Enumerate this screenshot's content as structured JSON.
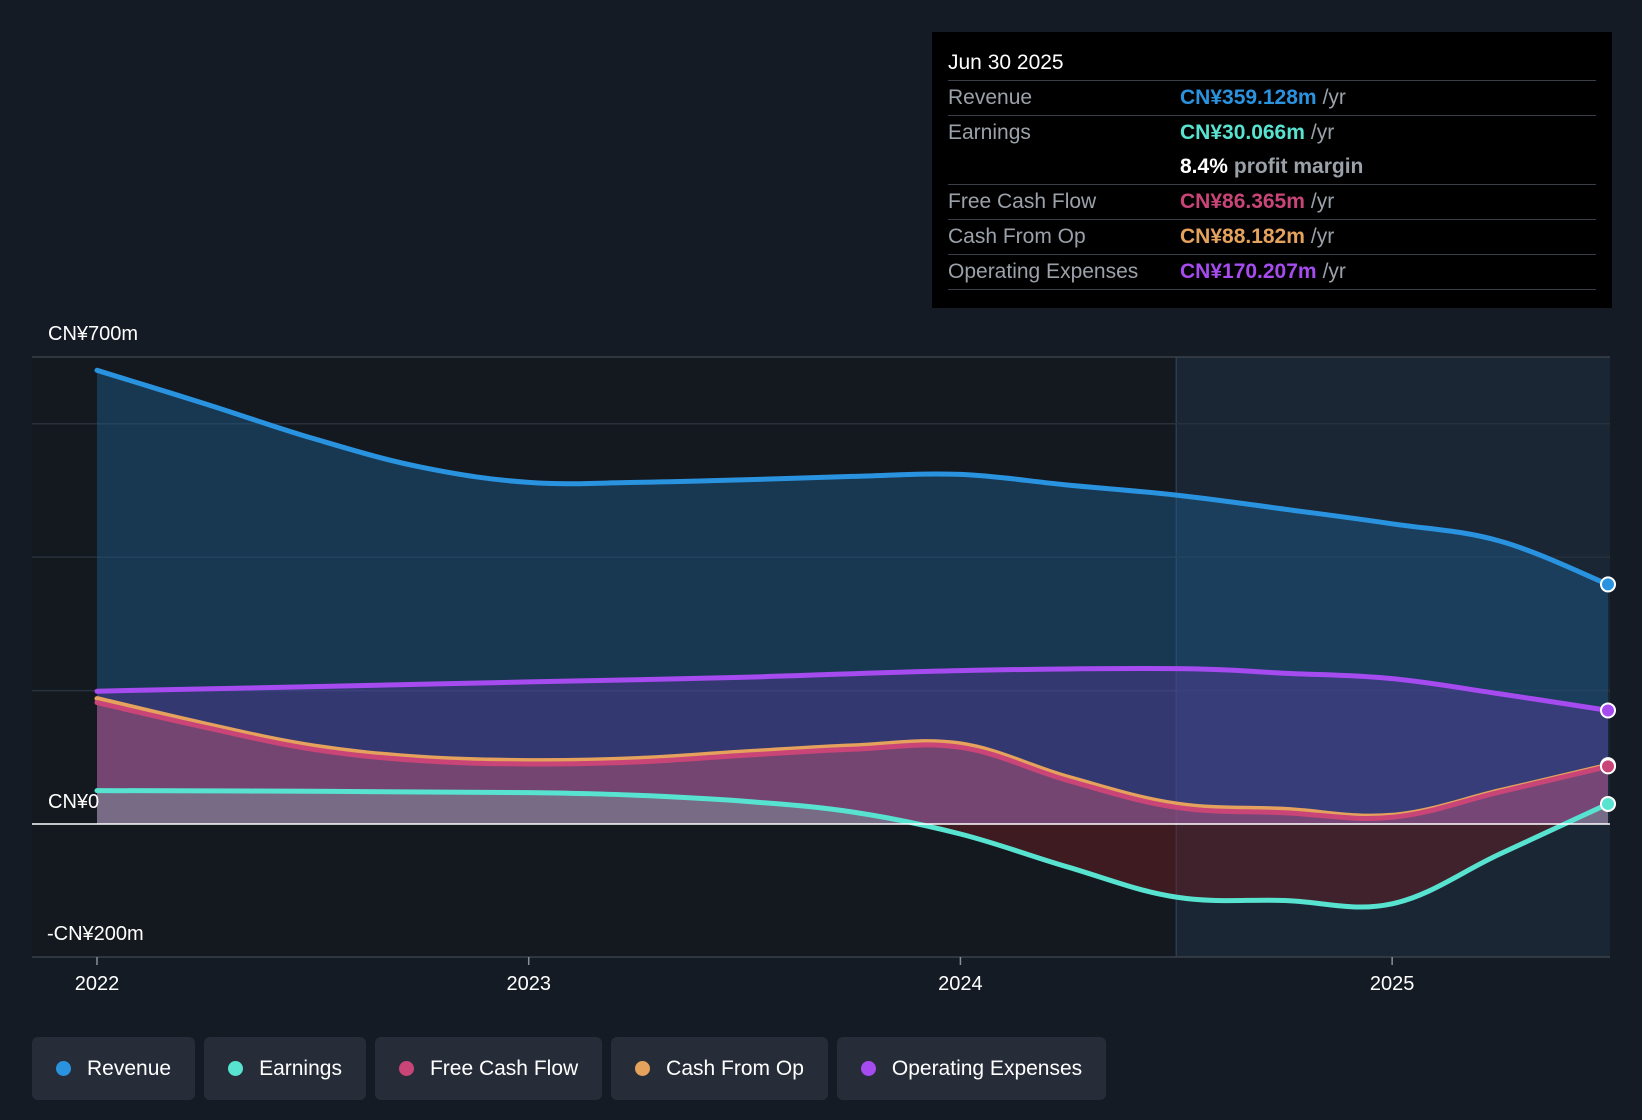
{
  "chart_data": {
    "type": "area",
    "currency_unit": "CN¥m",
    "y_axis": {
      "top_label": "CN¥700m",
      "zero_label": "CN¥0",
      "bottom_label": "-CN¥200m",
      "ylim": [
        -200,
        700
      ]
    },
    "x_axis": {
      "ticks": [
        2022,
        2023,
        2024,
        2025
      ],
      "tick_labels": [
        "2022",
        "2023",
        "2024",
        "2025"
      ],
      "xlim": [
        2022,
        2025.5
      ]
    },
    "forecast_start": 2024.5,
    "series": [
      {
        "key": "revenue",
        "name": "Revenue",
        "color": "#2a93e0",
        "points": [
          [
            2022.0,
            680
          ],
          [
            2022.25,
            630
          ],
          [
            2022.5,
            578
          ],
          [
            2022.75,
            535
          ],
          [
            2023.0,
            512
          ],
          [
            2023.25,
            512
          ],
          [
            2023.5,
            516
          ],
          [
            2023.75,
            521
          ],
          [
            2024.0,
            524
          ],
          [
            2024.25,
            508
          ],
          [
            2024.5,
            493
          ],
          [
            2024.75,
            472
          ],
          [
            2025.0,
            450
          ],
          [
            2025.25,
            424
          ],
          [
            2025.5,
            359.128
          ]
        ]
      },
      {
        "key": "operating_expenses",
        "name": "Operating Expenses",
        "color": "#a64bef",
        "points": [
          [
            2022.0,
            199
          ],
          [
            2022.5,
            206
          ],
          [
            2023.0,
            213
          ],
          [
            2023.5,
            220
          ],
          [
            2024.0,
            230
          ],
          [
            2024.5,
            233
          ],
          [
            2024.75,
            226
          ],
          [
            2025.0,
            218
          ],
          [
            2025.25,
            195
          ],
          [
            2025.5,
            170.207
          ]
        ]
      },
      {
        "key": "cash_from_op",
        "name": "Cash From Op",
        "color": "#e5a25d",
        "points": [
          [
            2022.0,
            188
          ],
          [
            2022.25,
            150
          ],
          [
            2022.5,
            117
          ],
          [
            2022.75,
            100
          ],
          [
            2023.0,
            95
          ],
          [
            2023.25,
            98
          ],
          [
            2023.5,
            108
          ],
          [
            2023.75,
            117
          ],
          [
            2024.0,
            120
          ],
          [
            2024.25,
            70
          ],
          [
            2024.5,
            30
          ],
          [
            2024.75,
            22
          ],
          [
            2025.0,
            13
          ],
          [
            2025.25,
            50
          ],
          [
            2025.5,
            88.182
          ]
        ]
      },
      {
        "key": "free_cash_flow",
        "name": "Free Cash Flow",
        "color": "#c94577",
        "points": [
          [
            2022.0,
            182
          ],
          [
            2022.25,
            145
          ],
          [
            2022.5,
            112
          ],
          [
            2022.75,
            95
          ],
          [
            2023.0,
            90
          ],
          [
            2023.25,
            93
          ],
          [
            2023.5,
            103
          ],
          [
            2023.75,
            112
          ],
          [
            2024.0,
            115
          ],
          [
            2024.25,
            65
          ],
          [
            2024.5,
            25
          ],
          [
            2024.75,
            17
          ],
          [
            2025.0,
            10
          ],
          [
            2025.25,
            48
          ],
          [
            2025.5,
            86.365
          ]
        ]
      },
      {
        "key": "earnings",
        "name": "Earnings",
        "color": "#58e3d1",
        "points": [
          [
            2022.0,
            50
          ],
          [
            2022.5,
            49
          ],
          [
            2023.0,
            47
          ],
          [
            2023.25,
            43
          ],
          [
            2023.5,
            34
          ],
          [
            2023.75,
            18
          ],
          [
            2024.0,
            -15
          ],
          [
            2024.25,
            -65
          ],
          [
            2024.5,
            -110
          ],
          [
            2024.75,
            -115
          ],
          [
            2025.0,
            -120
          ],
          [
            2025.25,
            -45
          ],
          [
            2025.5,
            30.066
          ]
        ]
      }
    ]
  },
  "tooltip": {
    "date": "Jun 30 2025",
    "rows": [
      {
        "label": "Revenue",
        "value": "CN¥359.128m",
        "unit": "/yr",
        "color": "#2a93e0"
      },
      {
        "label": "Earnings",
        "value": "CN¥30.066m",
        "unit": "/yr",
        "color": "#58e3d1"
      },
      {
        "label": "Free Cash Flow",
        "value": "CN¥86.365m",
        "unit": "/yr",
        "color": "#c94577"
      },
      {
        "label": "Cash From Op",
        "value": "CN¥88.182m",
        "unit": "/yr",
        "color": "#e5a25d"
      },
      {
        "label": "Operating Expenses",
        "value": "CN¥170.207m",
        "unit": "/yr",
        "color": "#a64bef"
      }
    ],
    "profit_margin_value": "8.4%",
    "profit_margin_label": "profit margin"
  },
  "legend": [
    {
      "label": "Revenue",
      "color": "#2a93e0"
    },
    {
      "label": "Earnings",
      "color": "#58e3d1"
    },
    {
      "label": "Free Cash Flow",
      "color": "#c94577"
    },
    {
      "label": "Cash From Op",
      "color": "#e5a25d"
    },
    {
      "label": "Operating Expenses",
      "color": "#a64bef"
    }
  ]
}
